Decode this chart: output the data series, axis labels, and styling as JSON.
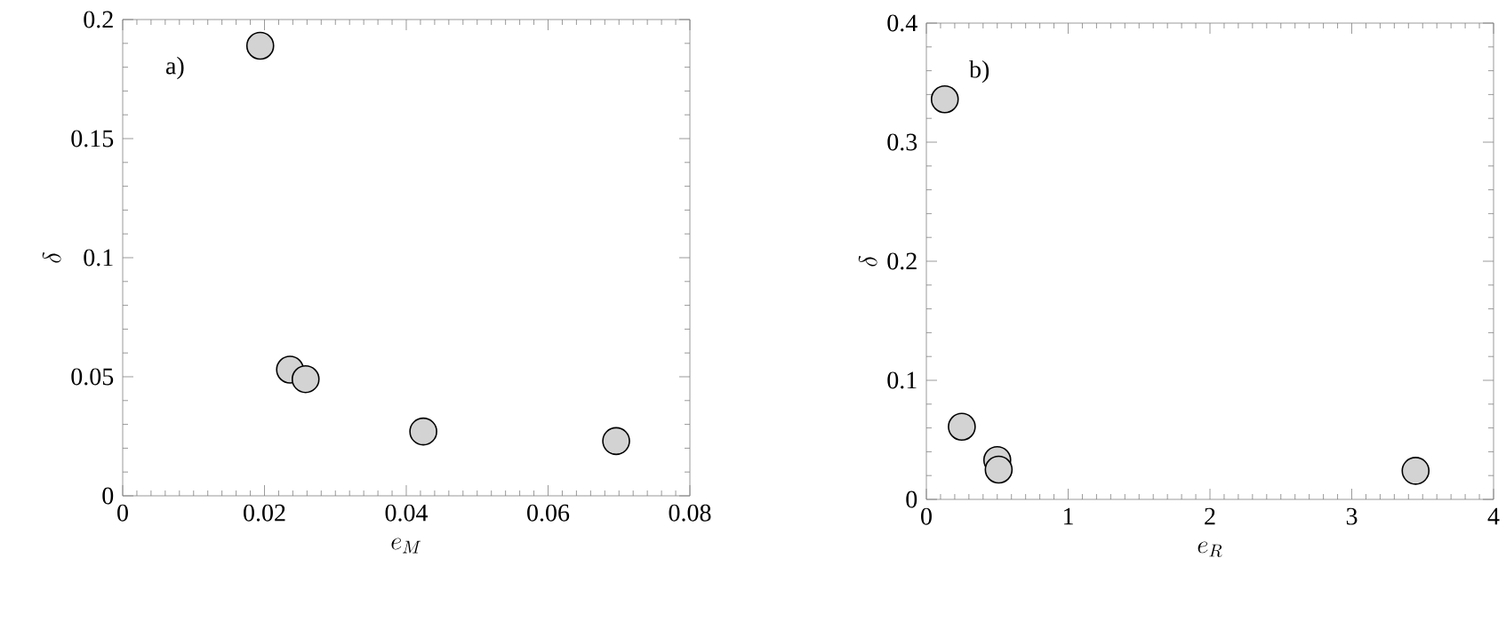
{
  "chart_data": [
    {
      "type": "scatter",
      "xlabel": "e_M",
      "ylabel": "\\delta",
      "annotations": [
        "a)"
      ],
      "marker": "circle",
      "grid": false,
      "series": [
        {
          "color": "#d3d3d3",
          "x": [
            0.0194,
            0.0236,
            0.0258,
            0.0424,
            0.0696
          ],
          "values": [
            0.189,
            0.053,
            0.049,
            0.027,
            0.023
          ]
        }
      ],
      "xlim": [
        0,
        0.08
      ],
      "xticks": [
        0,
        0.02,
        0.04,
        0.06,
        0.08
      ],
      "ylim": [
        0,
        0.2
      ],
      "yticks": [
        0,
        0.05,
        0.1,
        0.15,
        0.2
      ]
    },
    {
      "type": "scatter",
      "xlabel": "e_R",
      "ylabel": "\\delta",
      "annotations": [
        "b)"
      ],
      "marker": "circle",
      "grid": false,
      "series": [
        {
          "color": "#d3d3d3",
          "x": [
            0.13,
            0.25,
            0.5,
            0.51,
            3.45
          ],
          "values": [
            0.336,
            0.061,
            0.033,
            0.025,
            0.024
          ]
        }
      ],
      "xlim": [
        0,
        4
      ],
      "xticks": [
        0,
        1,
        2,
        3,
        4
      ],
      "ylim": [
        0,
        0.4
      ],
      "yticks": [
        0,
        0.1,
        0.2,
        0.3,
        0.4
      ]
    }
  ]
}
